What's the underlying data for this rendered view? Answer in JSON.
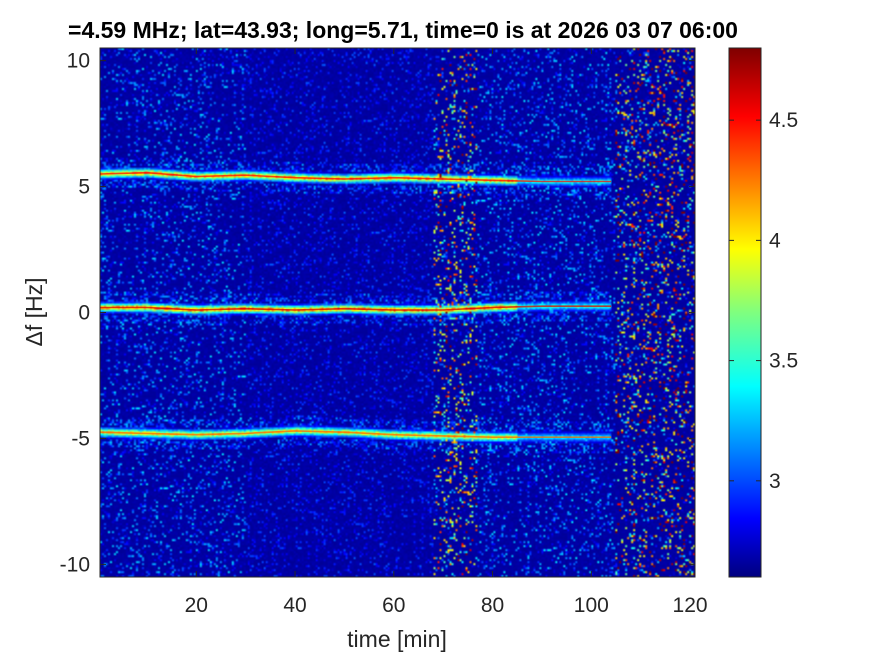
{
  "chart_data": {
    "type": "heatmap",
    "title": "=4.59 MHz;  lat=43.93; long=5.71, time=0 is at 2026 03 07 06:00",
    "xlabel": "time [min]",
    "ylabel": "Δf [Hz]",
    "xlim": [
      0.5,
      121
    ],
    "ylim": [
      -10.5,
      10.5
    ],
    "xticks": [
      20,
      40,
      60,
      80,
      100,
      120
    ],
    "xtick_labels": [
      "20",
      "40",
      "60",
      "80",
      "100",
      "120"
    ],
    "yticks": [
      10,
      5,
      0,
      -5,
      -10
    ],
    "ytick_labels": [
      "10",
      "5",
      "0",
      "-5",
      "-10"
    ],
    "colorbar": {
      "range": [
        2.6,
        4.8
      ],
      "ticks": [
        3,
        3.5,
        4,
        4.5
      ],
      "tick_labels": [
        "3",
        "3.5",
        "4",
        "4.5"
      ],
      "colormap": "jet"
    },
    "background_level": 2.65,
    "traces": [
      {
        "points": [
          [
            0.5,
            5.5
          ],
          [
            10,
            5.55
          ],
          [
            20,
            5.4
          ],
          [
            30,
            5.45
          ],
          [
            40,
            5.35
          ],
          [
            50,
            5.3
          ],
          [
            60,
            5.35
          ],
          [
            70,
            5.3
          ],
          [
            80,
            5.25
          ],
          [
            90,
            5.2
          ],
          [
            100,
            5.2
          ],
          [
            104,
            5.2
          ]
        ],
        "peak": 4.5
      },
      {
        "points": [
          [
            0.5,
            0.2
          ],
          [
            10,
            0.2
          ],
          [
            20,
            0.1
          ],
          [
            30,
            0.15
          ],
          [
            40,
            0.1
          ],
          [
            50,
            0.15
          ],
          [
            60,
            0.1
          ],
          [
            70,
            0.1
          ],
          [
            80,
            0.2
          ],
          [
            90,
            0.25
          ],
          [
            100,
            0.25
          ],
          [
            104,
            0.25
          ]
        ],
        "peak": 4.6
      },
      {
        "points": [
          [
            0.5,
            -4.75
          ],
          [
            10,
            -4.8
          ],
          [
            20,
            -4.85
          ],
          [
            30,
            -4.8
          ],
          [
            40,
            -4.7
          ],
          [
            50,
            -4.75
          ],
          [
            60,
            -4.85
          ],
          [
            70,
            -4.9
          ],
          [
            80,
            -4.95
          ],
          [
            90,
            -4.95
          ],
          [
            100,
            -4.95
          ],
          [
            104,
            -4.95
          ]
        ],
        "peak": 4.3
      }
    ],
    "interference_bands": [
      {
        "x_range": [
          68,
          77
        ],
        "level": 3.3
      },
      {
        "x_range": [
          105,
          121
        ],
        "level": 3.4
      }
    ]
  }
}
